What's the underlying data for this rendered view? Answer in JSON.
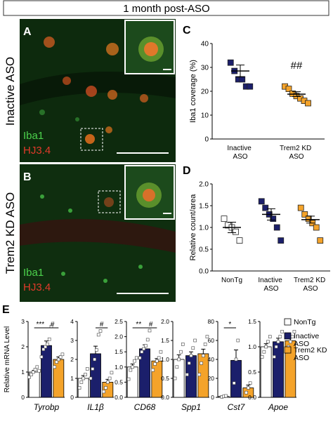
{
  "header": {
    "title": "1 month post-ASO"
  },
  "row_labels": [
    "Inactive ASO",
    "Trem2 KD ASO"
  ],
  "images": [
    {
      "label": "A",
      "stain_1": "Iba1",
      "stain_2": "HJ3.4"
    },
    {
      "label": "B",
      "stain_1": "Iba1",
      "stain_2": "HJ3.4"
    }
  ],
  "chart_data": [
    {
      "type": "dot",
      "panel": "C",
      "y_label": "Iba1 coverage (%)",
      "categories": [
        "Inactive ASO",
        "Trem2 KD ASO"
      ],
      "colors": [
        "#1b1f6b",
        "#f4a32a"
      ],
      "points": [
        [
          32,
          28.5,
          25,
          25,
          22,
          22
        ],
        [
          22,
          21,
          19,
          18,
          17,
          16,
          15
        ]
      ],
      "values": [
        28.5,
        18.8
      ],
      "errors": [
        2.5,
        1.0
      ],
      "significance": [
        null,
        "##"
      ],
      "ylim": [
        0,
        40
      ],
      "yticks": [
        0,
        10,
        20,
        30,
        40
      ]
    },
    {
      "type": "dot",
      "panel": "D",
      "y_label": "Relative count/area",
      "categories": [
        "NonTg",
        "Inactive ASO",
        "Trem2 KD ASO"
      ],
      "colors": [
        "#ffffff",
        "#1b1f6b",
        "#f4a32a"
      ],
      "points": [
        [
          1.2,
          1.05,
          1.0,
          0.9,
          0.7
        ],
        [
          1.6,
          1.45,
          1.3,
          1.2,
          1.0,
          0.7
        ],
        [
          1.45,
          1.3,
          1.2,
          1.1,
          1.0,
          0.7
        ]
      ],
      "values": [
        1.0,
        1.3,
        1.18
      ],
      "errors": [
        0.12,
        0.13,
        0.08
      ],
      "ylim": [
        0,
        2
      ],
      "yticks": [
        {
          "value": 0,
          "label": "0.0"
        },
        0.5,
        {
          "value": 1,
          "label": "1.0"
        },
        1.5,
        {
          "value": 2,
          "label": "2.0"
        }
      ]
    },
    {
      "type": "bar",
      "panel": "E",
      "y_label": "Relative mRNA Level",
      "series": [
        {
          "name": "NonTg",
          "color": "#ffffff"
        },
        {
          "name": "Inactive ASO",
          "color": "#1b1f6b"
        },
        {
          "name": "Trem2 KD ASO",
          "color": "#f4a32a"
        }
      ],
      "panels": [
        {
          "title": "Tyrobp",
          "ylim": [
            0,
            3
          ],
          "yticks": [
            0,
            1,
            2,
            3
          ],
          "values": [
            1.0,
            2.05,
            1.5
          ],
          "errors": [
            0.07,
            0.18,
            0.1
          ],
          "points": [
            [
              0.8,
              0.9,
              1.0,
              1.1,
              1.2,
              1.05
            ],
            [
              1.6,
              1.9,
              2.0,
              2.1,
              2.3,
              2.8
            ],
            [
              1.2,
              1.4,
              1.5,
              1.6,
              1.7
            ]
          ],
          "comparisons": [
            "***",
            "#"
          ]
        },
        {
          "title": "IL1β",
          "ylim": [
            0,
            4
          ],
          "yticks": [
            0,
            1,
            2,
            3,
            4
          ],
          "values": [
            1.0,
            2.3,
            0.8
          ],
          "errors": [
            0.15,
            0.4,
            0.15
          ],
          "points": [
            [
              0.5,
              0.8,
              1.0,
              1.2,
              1.5
            ],
            [
              1.0,
              1.5,
              2.0,
              2.5,
              3.3,
              3.5
            ],
            [
              0.3,
              0.5,
              0.8,
              1.0,
              1.3
            ]
          ],
          "comparisons": [
            null,
            "#"
          ]
        },
        {
          "title": "CD68",
          "ylim": [
            0,
            2.5
          ],
          "yticks": [
            {
              "value": 0,
              "label": "0.0"
            },
            0.5,
            {
              "value": 1,
              "label": "1.0"
            },
            1.5,
            {
              "value": 2,
              "label": "2.0"
            },
            2.5
          ],
          "values": [
            1.0,
            1.6,
            1.2
          ],
          "errors": [
            0.1,
            0.13,
            0.08
          ],
          "points": [
            [
              0.6,
              0.9,
              1.0,
              1.2,
              1.3
            ],
            [
              1.3,
              1.5,
              1.6,
              1.7,
              1.9,
              2.2
            ],
            [
              0.9,
              1.1,
              1.2,
              1.3,
              1.5
            ]
          ],
          "comparisons": [
            "**",
            "#"
          ]
        },
        {
          "title": "Spp1",
          "ylim": [
            0,
            2
          ],
          "yticks": [
            {
              "value": 0,
              "label": "0.0"
            },
            0.5,
            {
              "value": 1,
              "label": "1.0"
            },
            1.5,
            {
              "value": 2,
              "label": "2.0"
            }
          ],
          "values": [
            1.0,
            1.1,
            1.15
          ],
          "errors": [
            0.12,
            0.1,
            0.12
          ],
          "points": [
            [
              0.5,
              0.8,
              1.0,
              1.2,
              1.4
            ],
            [
              0.6,
              0.9,
              1.1,
              1.3,
              1.5
            ],
            [
              0.6,
              0.9,
              1.1,
              1.4,
              1.6
            ]
          ],
          "comparisons": [
            null,
            null
          ]
        },
        {
          "title": "Cst7",
          "ylim": [
            0,
            80
          ],
          "yticks": [
            0,
            20,
            40,
            60,
            80
          ],
          "values": [
            1.0,
            39,
            10
          ],
          "errors": [
            0.3,
            11,
            3
          ],
          "points": [
            [
              0.5,
              1.0,
              1.5
            ],
            [
              15,
              40,
              60
            ],
            [
              5,
              10,
              15
            ]
          ],
          "comparisons": [
            "*",
            null
          ]
        },
        {
          "title": "Apoe",
          "ylim": [
            0,
            1.5
          ],
          "yticks": [
            {
              "value": 0,
              "label": "0.0"
            },
            0.5,
            {
              "value": 1,
              "label": "1.0"
            },
            1.5
          ],
          "values": [
            1.0,
            1.1,
            1.12
          ],
          "errors": [
            0.06,
            0.07,
            0.08
          ],
          "points": [
            [
              0.8,
              0.9,
              1.0,
              1.1,
              1.2
            ],
            [
              0.8,
              1.0,
              1.1,
              1.2,
              1.3
            ],
            [
              0.9,
              1.0,
              1.1,
              1.2,
              1.3
            ]
          ],
          "comparisons": [
            null,
            null
          ]
        }
      ]
    }
  ]
}
